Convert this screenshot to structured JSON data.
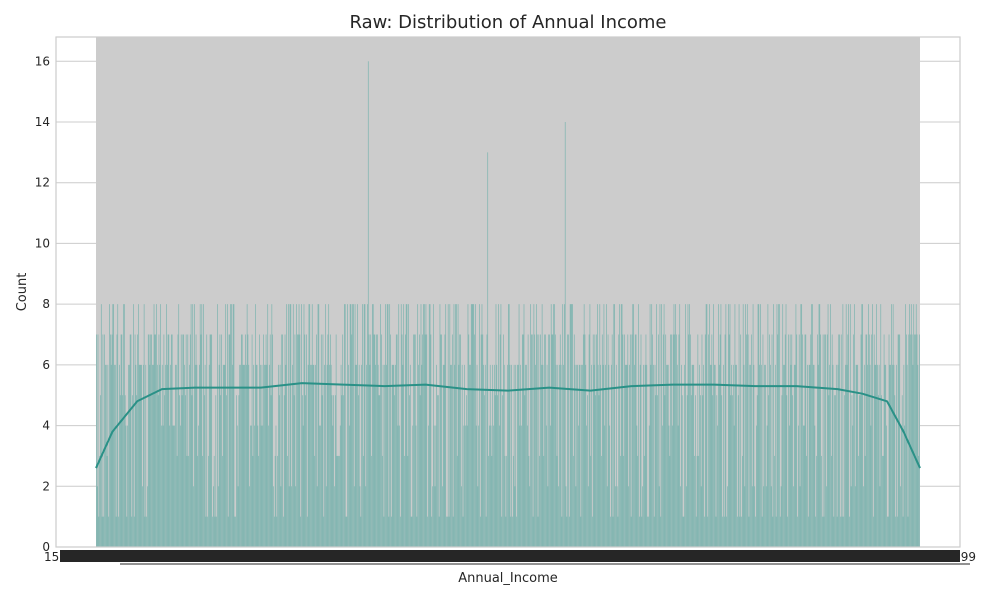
{
  "colors": {
    "background": "#ffffff",
    "plot_background": "#ffffff",
    "bars_fill": "#79b3ae",
    "kde_line": "#2a9187",
    "grid": "#cccccc",
    "axis_text": "#262626",
    "title_text": "#262626"
  },
  "chart_data": {
    "type": "bar",
    "title": "Raw: Distribution of Annual Income",
    "xlabel": "Annual_Income",
    "ylabel": "Count",
    "grid": true,
    "legend": "none",
    "y_ticks": [
      "0",
      "2",
      "4",
      "6",
      "8",
      "10",
      "12",
      "14",
      "16"
    ],
    "ylim": [
      0,
      16.8
    ],
    "x_tick_labels_visible": {
      "left": "15...",
      "right": "...99"
    },
    "x_categories_note": "dense categorical x-axis; tick labels overlap and are unreadable",
    "bar_count": 1000,
    "bar_value_distribution": {
      "mostly_levels": [
        1,
        2,
        3,
        4,
        5,
        6,
        7,
        8
      ],
      "peak_values": [
        {
          "approx_position": 0.33,
          "value": 16
        },
        {
          "approx_position": 0.475,
          "value": 13
        },
        {
          "approx_position": 0.57,
          "value": 14
        }
      ]
    },
    "kde_series": {
      "name": "",
      "x": [
        0.0,
        0.02,
        0.05,
        0.08,
        0.12,
        0.2,
        0.25,
        0.3,
        0.35,
        0.4,
        0.45,
        0.5,
        0.55,
        0.6,
        0.65,
        0.7,
        0.75,
        0.8,
        0.85,
        0.9,
        0.93,
        0.96,
        0.98,
        1.0
      ],
      "y": [
        2.6,
        3.8,
        4.8,
        5.2,
        5.25,
        5.25,
        5.4,
        5.35,
        5.3,
        5.35,
        5.2,
        5.15,
        5.25,
        5.15,
        5.3,
        5.35,
        5.35,
        5.3,
        5.3,
        5.2,
        5.05,
        4.8,
        3.8,
        2.6
      ]
    }
  }
}
